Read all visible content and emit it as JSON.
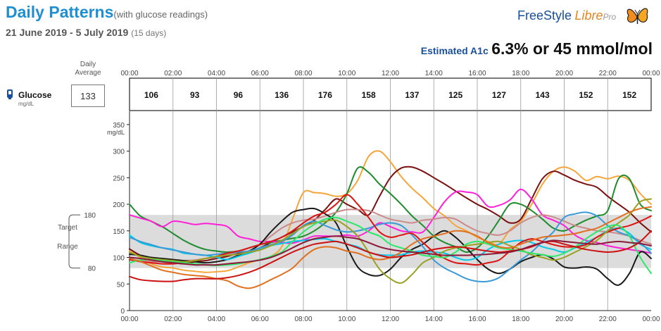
{
  "header": {
    "title": "Daily Patterns",
    "title_note": "(with glucose readings)",
    "date_range": "21 June 2019 - 5 July 2019",
    "days": "(15 days)",
    "brand_freestyle": "FreeStyle",
    "brand_libre": "Libre",
    "brand_pro": "Pro",
    "brand_icon": "butterfly-logo",
    "a1c_label": "Estimated A1c",
    "a1c_value": "6.3% or 45 mmol/mol"
  },
  "glucose": {
    "label": "Glucose",
    "unit": "mg/dL",
    "icon": "sensor-icon",
    "daily_average_label": "Daily Average",
    "daily_average": "133"
  },
  "chart_data": {
    "type": "line",
    "time_ticks": [
      "00:00",
      "02:00",
      "04:00",
      "06:00",
      "08:00",
      "10:00",
      "12:00",
      "14:00",
      "16:00",
      "18:00",
      "20:00",
      "22:00",
      "00:00"
    ],
    "interval_averages": [
      "106",
      "93",
      "96",
      "136",
      "176",
      "158",
      "137",
      "125",
      "127",
      "143",
      "152",
      "152"
    ],
    "ylabel": "mg/dL",
    "y_ticks": [
      0,
      50,
      100,
      150,
      200,
      250,
      300,
      350
    ],
    "ylim": [
      0,
      375
    ],
    "target_range": {
      "label": "Target Range",
      "low": 80,
      "high": 180,
      "color": "#dcdcdc"
    },
    "x_hours": [
      0,
      0.5,
      1,
      1.5,
      2,
      2.5,
      3,
      3.5,
      4,
      4.5,
      5,
      5.5,
      6,
      6.5,
      7,
      7.5,
      8,
      8.5,
      9,
      9.5,
      10,
      10.5,
      11,
      11.5,
      12,
      12.5,
      13,
      13.5,
      14,
      14.5,
      15,
      15.5,
      16,
      16.5,
      17,
      17.5,
      18,
      18.5,
      19,
      19.5,
      20,
      20.5,
      21,
      21.5,
      22,
      22.5,
      23,
      23.5,
      24
    ],
    "series": [
      {
        "color": "#f4a63b",
        "values": [
          112,
          100,
          88,
          82,
          80,
          76,
          74,
          72,
          73,
          75,
          82,
          90,
          96,
          102,
          120,
          172,
          222,
          222,
          220,
          215,
          220,
          245,
          290,
          300,
          280,
          252,
          230,
          212,
          192,
          178,
          160,
          150,
          138,
          130,
          125,
          152,
          168,
          200,
          238,
          262,
          270,
          262,
          245,
          252,
          248,
          253,
          245,
          220,
          200
        ]
      },
      {
        "color": "#7a1010",
        "values": [
          116,
          104,
          98,
          92,
          90,
          88,
          92,
          94,
          98,
          102,
          108,
          112,
          118,
          128,
          138,
          148,
          158,
          170,
          190,
          210,
          200,
          190,
          180,
          215,
          250,
          268,
          270,
          262,
          250,
          238,
          225,
          212,
          200,
          190,
          178,
          165,
          172,
          210,
          248,
          262,
          255,
          245,
          238,
          232,
          215,
          200,
          185,
          165,
          148
        ]
      },
      {
        "color": "#1e8c2e",
        "values": [
          200,
          178,
          168,
          158,
          145,
          132,
          122,
          115,
          112,
          110,
          112,
          118,
          124,
          128,
          132,
          136,
          140,
          150,
          165,
          185,
          220,
          268,
          260,
          238,
          220,
          200,
          178,
          160,
          140,
          128,
          120,
          110,
          118,
          140,
          170,
          200,
          200,
          188,
          172,
          155,
          150,
          160,
          170,
          178,
          188,
          248,
          248,
          200,
          188
        ]
      },
      {
        "color": "#ff1fd8",
        "values": [
          180,
          174,
          168,
          158,
          168,
          166,
          162,
          164,
          162,
          158,
          140,
          135,
          130,
          130,
          128,
          127,
          133,
          140,
          140,
          140,
          142,
          140,
          150,
          165,
          158,
          150,
          148,
          148,
          175,
          205,
          223,
          223,
          218,
          196,
          198,
          208,
          228,
          210,
          180,
          170,
          160,
          142,
          132,
          128,
          122,
          118,
          115,
          112,
          108
        ]
      },
      {
        "color": "#cc8a8a",
        "values": [
          96,
          94,
          92,
          92,
          92,
          94,
          95,
          98,
          100,
          105,
          110,
          118,
          125,
          140,
          155,
          165,
          170,
          172,
          178,
          185,
          190,
          190,
          188,
          180,
          172,
          168,
          165,
          170,
          172,
          175,
          172,
          160,
          150,
          145,
          142,
          150,
          165,
          175,
          180,
          176,
          168,
          160,
          155,
          150,
          148,
          145,
          140,
          132,
          125
        ]
      },
      {
        "color": "#1a1a1a",
        "values": [
          106,
          104,
          100,
          98,
          96,
          94,
          92,
          90,
          92,
          96,
          104,
          112,
          125,
          148,
          168,
          185,
          190,
          192,
          182,
          165,
          120,
          82,
          68,
          66,
          78,
          100,
          115,
          125,
          140,
          150,
          138,
          118,
          96,
          78,
          70,
          78,
          92,
          100,
          105,
          97,
          82,
          80,
          82,
          78,
          60,
          48,
          70,
          110,
          98
        ]
      },
      {
        "color": "#00c8e8",
        "values": [
          142,
          128,
          122,
          118,
          115,
          108,
          106,
          104,
          100,
          96,
          102,
          108,
          115,
          122,
          126,
          130,
          132,
          134,
          135,
          130,
          125,
          120,
          110,
          105,
          104,
          105,
          110,
          112,
          110,
          108,
          100,
          95,
          100,
          115,
          125,
          130,
          132,
          128,
          120,
          115,
          110,
          118,
          128,
          138,
          150,
          155,
          145,
          125,
          115
        ]
      },
      {
        "color": "#3a9ad8",
        "values": [
          138,
          130,
          124,
          118,
          114,
          110,
          106,
          104,
          106,
          108,
          110,
          112,
          118,
          124,
          130,
          142,
          160,
          168,
          160,
          152,
          148,
          150,
          155,
          162,
          165,
          160,
          142,
          120,
          95,
          80,
          70,
          60,
          55,
          55,
          62,
          78,
          95,
          110,
          130,
          148,
          175,
          182,
          185,
          178,
          160,
          148,
          140,
          128,
          108
        ]
      },
      {
        "color": "#dc1414",
        "values": [
          96,
          92,
          90,
          88,
          88,
          90,
          94,
          98,
          102,
          108,
          112,
          118,
          124,
          130,
          138,
          150,
          165,
          178,
          185,
          200,
          218,
          200,
          175,
          148,
          138,
          142,
          145,
          128,
          110,
          98,
          90,
          88,
          86,
          90,
          95,
          112,
          128,
          135,
          130,
          124,
          120,
          120,
          124,
          138,
          148,
          155,
          160,
          168,
          178
        ]
      },
      {
        "color": "#9aa022",
        "values": [
          110,
          102,
          98,
          96,
          94,
          92,
          94,
          98,
          102,
          104,
          106,
          110,
          114,
          122,
          132,
          145,
          158,
          165,
          168,
          170,
          158,
          140,
          110,
          78,
          60,
          52,
          68,
          90,
          100,
          112,
          118,
          122,
          125,
          128,
          130,
          122,
          115,
          105,
          100,
          95,
          100,
          110,
          120,
          132,
          150,
          165,
          180,
          205,
          210
        ]
      },
      {
        "color": "#2ee86a",
        "values": [
          90,
          95,
          96,
          94,
          92,
          90,
          88,
          86,
          85,
          86,
          88,
          92,
          96,
          102,
          110,
          130,
          148,
          162,
          172,
          175,
          168,
          160,
          148,
          140,
          125,
          118,
          112,
          104,
          102,
          100,
          110,
          125,
          130,
          125,
          118,
          115,
          112,
          108,
          105,
          102,
          108,
          120,
          135,
          148,
          158,
          160,
          140,
          100,
          70
        ]
      },
      {
        "color": "#e07020",
        "values": [
          98,
          92,
          84,
          76,
          72,
          68,
          66,
          64,
          60,
          56,
          46,
          42,
          48,
          58,
          68,
          80,
          100,
          115,
          120,
          118,
          112,
          108,
          100,
          96,
          100,
          110,
          125,
          135,
          140,
          145,
          150,
          148,
          140,
          128,
          120,
          118,
          125,
          132,
          138,
          140,
          142,
          145,
          150,
          155,
          165,
          175,
          185,
          192,
          195
        ]
      },
      {
        "color": "#cc1010",
        "values": [
          64,
          58,
          56,
          55,
          55,
          58,
          60,
          60,
          60,
          62,
          66,
          72,
          80,
          90,
          100,
          110,
          118,
          125,
          128,
          130,
          125,
          118,
          110,
          104,
          100,
          102,
          105,
          110,
          115,
          118,
          120,
          118,
          115,
          112,
          110,
          112,
          115,
          120,
          128,
          130,
          125,
          120,
          115,
          112,
          110,
          112,
          118,
          130,
          150
        ]
      },
      {
        "color": "#8b1a3a",
        "values": [
          100,
          98,
          95,
          92,
          90,
          88,
          86,
          86,
          86,
          88,
          90,
          92,
          95,
          100,
          108,
          118,
          128,
          135,
          138,
          140,
          138,
          135,
          128,
          120,
          115,
          112,
          110,
          108,
          106,
          104,
          104,
          104,
          105,
          106,
          108,
          110,
          115,
          122,
          128,
          132,
          130,
          128,
          126,
          125,
          128,
          130,
          128,
          126,
          122
        ]
      }
    ]
  }
}
